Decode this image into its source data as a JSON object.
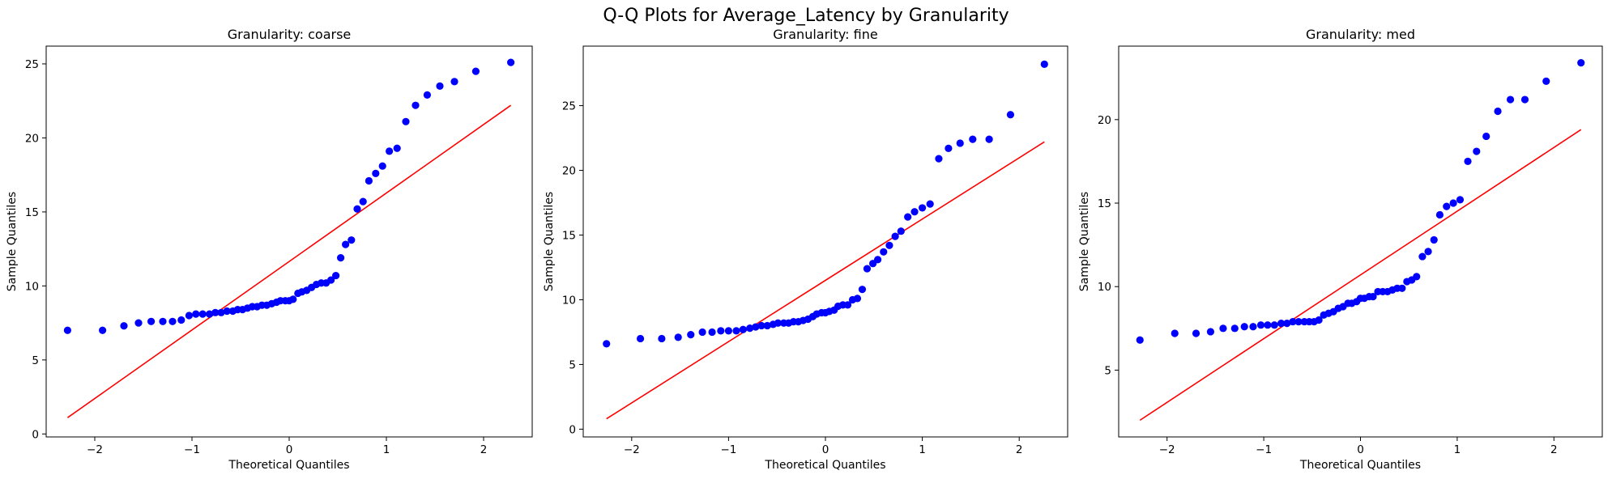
{
  "figure": {
    "title": "Q-Q Plots for Average_Latency by Granularity",
    "point_color": "#0000ff",
    "line_color": "#ff0000"
  },
  "chart_data": [
    {
      "type": "scatter",
      "title": "Granularity: coarse",
      "xlabel": "Theoretical Quantiles",
      "ylabel": "Sample Quantiles",
      "xlim": [
        -2.5,
        2.5
      ],
      "ylim": [
        -0.2,
        26.2
      ],
      "xticks": [
        -2,
        -1,
        0,
        1,
        2
      ],
      "yticks": [
        0,
        5,
        10,
        15,
        20,
        25
      ],
      "grid": false,
      "series": [
        {
          "kind": "points",
          "x": [
            -2.28,
            -1.92,
            -1.7,
            -1.55,
            -1.42,
            -1.3,
            -1.2,
            -1.11,
            -1.03,
            -0.96,
            -0.89,
            -0.82,
            -0.76,
            -0.7,
            -0.64,
            -0.58,
            -0.53,
            -0.48,
            -0.43,
            -0.38,
            -0.33,
            -0.28,
            -0.23,
            -0.18,
            -0.13,
            -0.09,
            -0.04,
            0.0,
            0.04,
            0.09,
            0.13,
            0.18,
            0.23,
            0.28,
            0.33,
            0.38,
            0.43,
            0.48,
            0.53,
            0.58,
            0.64,
            0.7,
            0.76,
            0.82,
            0.89,
            0.96,
            1.03,
            1.11,
            1.2,
            1.3,
            1.42,
            1.55,
            1.7,
            1.92,
            2.28
          ],
          "y": [
            7.0,
            7.0,
            7.3,
            7.5,
            7.6,
            7.6,
            7.6,
            7.7,
            8.0,
            8.1,
            8.1,
            8.1,
            8.2,
            8.2,
            8.3,
            8.3,
            8.4,
            8.4,
            8.5,
            8.6,
            8.6,
            8.7,
            8.7,
            8.8,
            8.9,
            9.0,
            9.0,
            9.0,
            9.1,
            9.5,
            9.6,
            9.7,
            9.9,
            10.1,
            10.2,
            10.2,
            10.4,
            10.7,
            11.9,
            12.8,
            13.1,
            15.2,
            15.7,
            17.1,
            17.6,
            18.1,
            19.1,
            19.3,
            21.1,
            22.2,
            22.9,
            23.5,
            23.8,
            24.5,
            25.1
          ]
        },
        {
          "kind": "reference-line",
          "x": [
            -2.28,
            2.28
          ],
          "y": [
            1.1,
            22.2
          ]
        }
      ]
    },
    {
      "type": "scatter",
      "title": "Granularity: fine",
      "xlabel": "Theoretical Quantiles",
      "ylabel": "Sample Quantiles",
      "xlim": [
        -2.5,
        2.5
      ],
      "ylim": [
        -0.6,
        29.6
      ],
      "xticks": [
        -2,
        -1,
        0,
        1,
        2
      ],
      "yticks": [
        0,
        5,
        10,
        15,
        20,
        25
      ],
      "grid": false,
      "series": [
        {
          "kind": "points",
          "x": [
            -2.26,
            -1.91,
            -1.69,
            -1.52,
            -1.39,
            -1.27,
            -1.17,
            -1.08,
            -1.0,
            -0.92,
            -0.85,
            -0.78,
            -0.72,
            -0.66,
            -0.6,
            -0.54,
            -0.49,
            -0.43,
            -0.38,
            -0.33,
            -0.28,
            -0.23,
            -0.18,
            -0.13,
            -0.09,
            -0.04,
            0.0,
            0.04,
            0.09,
            0.13,
            0.18,
            0.23,
            0.28,
            0.33,
            0.38,
            0.43,
            0.49,
            0.54,
            0.6,
            0.66,
            0.72,
            0.78,
            0.85,
            0.92,
            1.0,
            1.08,
            1.17,
            1.27,
            1.39,
            1.52,
            1.69,
            1.91,
            2.26
          ],
          "y": [
            6.6,
            7.0,
            7.0,
            7.1,
            7.3,
            7.5,
            7.5,
            7.6,
            7.6,
            7.6,
            7.7,
            7.8,
            7.9,
            8.0,
            8.0,
            8.1,
            8.2,
            8.2,
            8.2,
            8.3,
            8.3,
            8.4,
            8.5,
            8.7,
            8.9,
            9.0,
            9.0,
            9.1,
            9.2,
            9.5,
            9.6,
            9.6,
            10.0,
            10.1,
            10.8,
            12.4,
            12.8,
            13.1,
            13.7,
            14.2,
            14.9,
            15.3,
            16.4,
            16.8,
            17.1,
            17.4,
            20.9,
            21.7,
            22.1,
            22.4,
            22.4,
            24.3,
            28.2
          ]
        },
        {
          "kind": "reference-line",
          "x": [
            -2.26,
            2.26
          ],
          "y": [
            0.8,
            22.2
          ]
        }
      ]
    },
    {
      "type": "scatter",
      "title": "Granularity: med",
      "xlabel": "Theoretical Quantiles",
      "ylabel": "Sample Quantiles",
      "xlim": [
        -2.5,
        2.5
      ],
      "ylim": [
        1.0,
        24.4
      ],
      "xticks": [
        -2,
        -1,
        0,
        1,
        2
      ],
      "yticks": [
        5,
        10,
        15,
        20
      ],
      "grid": false,
      "series": [
        {
          "kind": "points",
          "x": [
            -2.28,
            -1.92,
            -1.7,
            -1.55,
            -1.42,
            -1.3,
            -1.2,
            -1.11,
            -1.03,
            -0.96,
            -0.89,
            -0.82,
            -0.76,
            -0.7,
            -0.64,
            -0.58,
            -0.53,
            -0.48,
            -0.43,
            -0.38,
            -0.33,
            -0.28,
            -0.23,
            -0.18,
            -0.13,
            -0.09,
            -0.04,
            0.0,
            0.04,
            0.09,
            0.13,
            0.18,
            0.23,
            0.28,
            0.33,
            0.38,
            0.43,
            0.48,
            0.53,
            0.58,
            0.64,
            0.7,
            0.76,
            0.82,
            0.89,
            0.96,
            1.03,
            1.11,
            1.2,
            1.3,
            1.42,
            1.55,
            1.7,
            1.92,
            2.28
          ],
          "y": [
            6.8,
            7.2,
            7.2,
            7.3,
            7.5,
            7.5,
            7.6,
            7.6,
            7.7,
            7.7,
            7.7,
            7.8,
            7.8,
            7.9,
            7.9,
            7.9,
            7.9,
            7.9,
            8.0,
            8.3,
            8.4,
            8.5,
            8.7,
            8.8,
            9.0,
            9.0,
            9.1,
            9.3,
            9.3,
            9.4,
            9.4,
            9.7,
            9.7,
            9.7,
            9.8,
            9.9,
            9.9,
            10.3,
            10.4,
            10.6,
            11.8,
            12.1,
            12.8,
            14.3,
            14.8,
            15.0,
            15.2,
            17.5,
            18.1,
            19.0,
            20.5,
            21.2,
            21.2,
            22.3,
            23.4
          ]
        },
        {
          "kind": "reference-line",
          "x": [
            -2.28,
            2.28
          ],
          "y": [
            2.0,
            19.4
          ]
        }
      ]
    }
  ]
}
